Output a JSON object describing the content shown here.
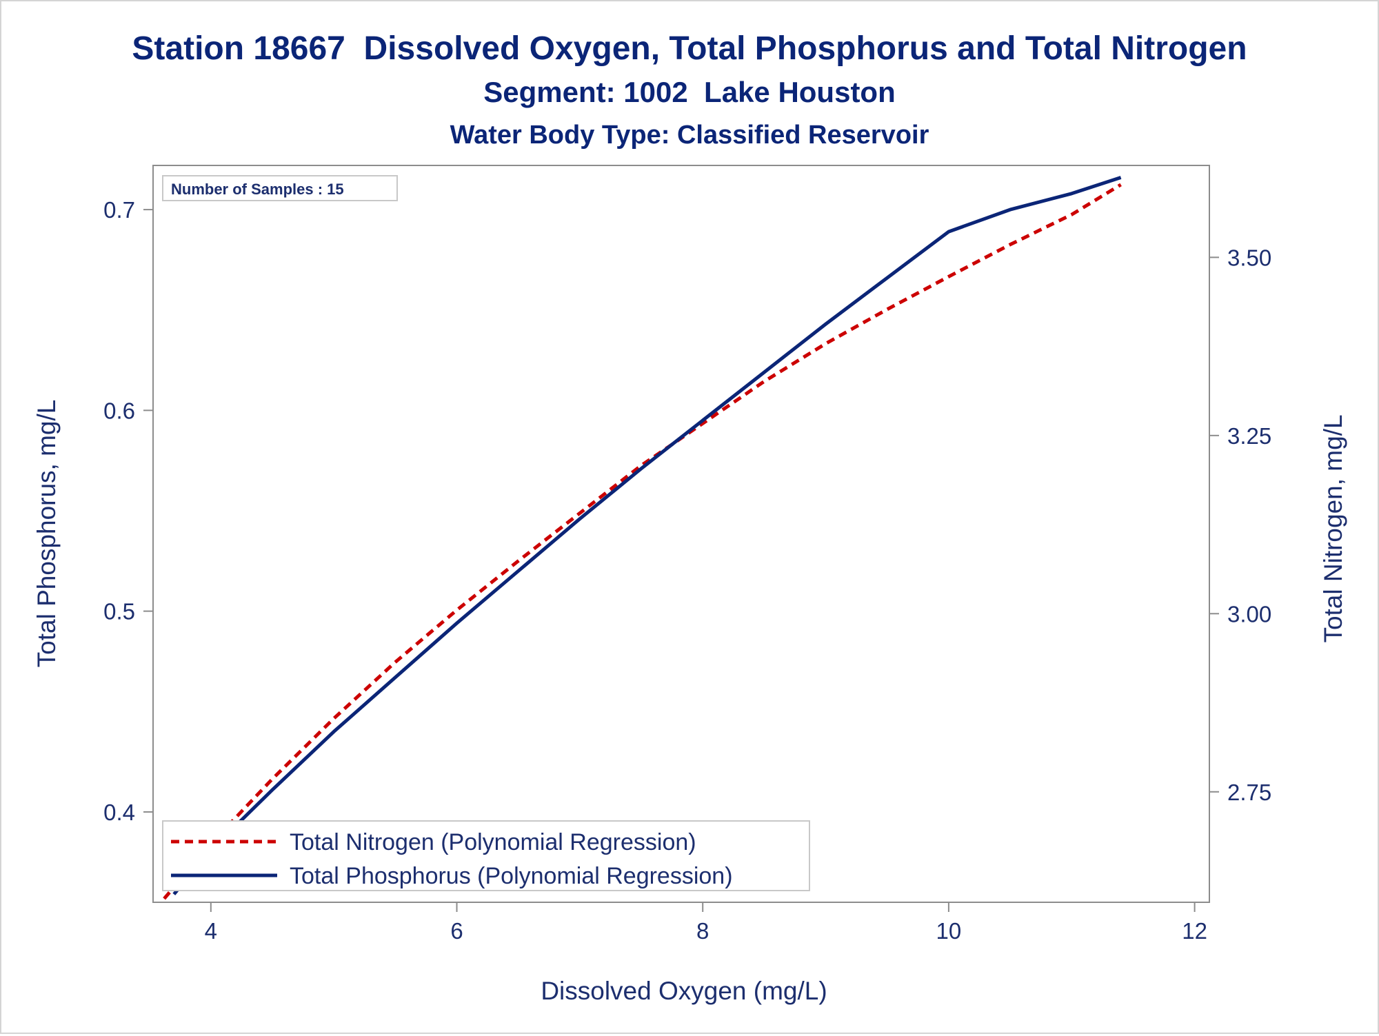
{
  "colors": {
    "text": "#1c2e6e",
    "title": "#0b2577",
    "frame": "#8c8c8c",
    "nitrogen": "#cc0000",
    "phosphorus": "#0b2577"
  },
  "chart_data": {
    "type": "line",
    "title": "Station 18667  Dissolved Oxygen, Total Phosphorus and Total Nitrogen",
    "subtitle": "Segment: 1002  Lake Houston",
    "subtitle2": "Water Body Type: Classified Reservoir",
    "xlabel": "Dissolved Oxygen (mg/L)",
    "ylabel_left": "Total Phosphorus, mg/L",
    "ylabel_right": "Total Nitrogen, mg/L",
    "xlim": [
      3.53,
      12.12
    ],
    "ylim_left": [
      0.355,
      0.722
    ],
    "ylim_right": [
      2.595,
      3.629
    ],
    "x_ticks": [
      "4",
      "6",
      "8",
      "10",
      "12"
    ],
    "y_left_ticks": [
      "0.4",
      "0.5",
      "0.6",
      "0.7"
    ],
    "y_right_ticks": [
      "2.75",
      "3.00",
      "3.25",
      "3.50"
    ],
    "inset_label": "Number of Samples : 15",
    "grid": false,
    "legend_position": "bottom-left",
    "series": [
      {
        "name": "Total Nitrogen (Polynomial Regression)",
        "axis": "right",
        "style": "dashed",
        "x": [
          3.62,
          4.0,
          4.5,
          5.0,
          5.5,
          6.0,
          6.5,
          7.0,
          7.5,
          8.0,
          8.5,
          9.0,
          9.5,
          10.0,
          10.5,
          11.0,
          11.4
        ],
        "y": [
          2.6,
          2.677,
          2.768,
          2.853,
          2.932,
          3.005,
          3.074,
          3.141,
          3.208,
          3.267,
          3.326,
          3.379,
          3.427,
          3.473,
          3.518,
          3.56,
          3.602
        ]
      },
      {
        "name": "Total Phosphorus (Polynomial Regression)",
        "axis": "left",
        "style": "solid",
        "x": [
          3.7,
          4.0,
          4.5,
          5.0,
          5.5,
          6.0,
          6.5,
          7.0,
          7.5,
          8.0,
          8.5,
          9.0,
          9.5,
          10.0,
          10.5,
          11.0,
          11.4
        ],
        "y": [
          0.359,
          0.381,
          0.411,
          0.44,
          0.467,
          0.494,
          0.52,
          0.546,
          0.571,
          0.595,
          0.619,
          0.643,
          0.666,
          0.689,
          0.7,
          0.708,
          0.716
        ]
      }
    ]
  }
}
